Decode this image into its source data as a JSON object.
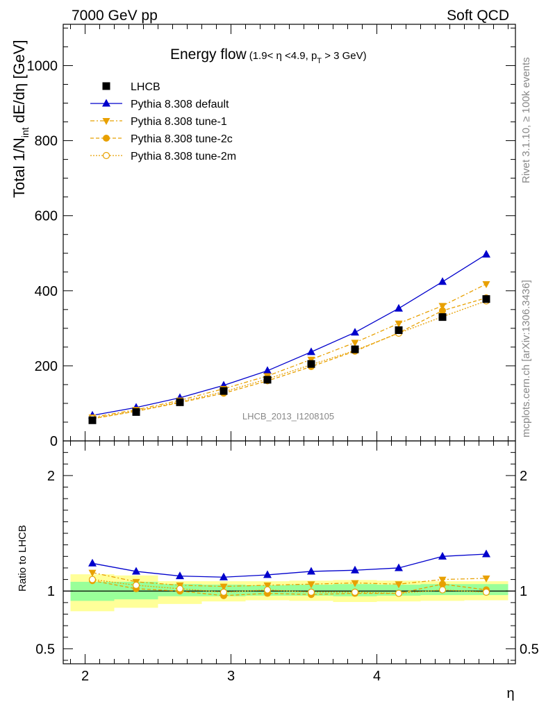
{
  "header": {
    "left": "7000 GeV pp",
    "right": "Soft QCD"
  },
  "title": {
    "main": "Energy flow",
    "sub": "(1.9< η <4.9, p",
    "sub_t": "T",
    "sub_end": " > 3 GeV)"
  },
  "ylabel": {
    "part1": "Total 1/N",
    "sub": "int",
    "part2": " dE/dη [GeV]"
  },
  "ratio_ylabel": "Ratio to LHCB",
  "xlabel": "η",
  "analysis_id": "LHCB_2013_I1208105",
  "side_right_top": "Rivet 3.1.10, ≥ 100k events",
  "side_right_bottom": "mcplots.cern.ch [arXiv:1306.3436]",
  "colors": {
    "lhcb": "#000000",
    "default": "#0000cc",
    "tune": "#e8a000",
    "band_inner": "#99ff99",
    "band_outer": "#ffff99"
  },
  "chart_data": {
    "type": "line",
    "x_bins": [
      [
        1.9,
        2.2
      ],
      [
        2.2,
        2.5
      ],
      [
        2.5,
        2.8
      ],
      [
        2.8,
        3.1
      ],
      [
        3.1,
        3.4
      ],
      [
        3.4,
        3.7
      ],
      [
        3.7,
        4.0
      ],
      [
        4.0,
        4.3
      ],
      [
        4.3,
        4.6
      ],
      [
        4.6,
        4.9
      ]
    ],
    "x": [
      2.05,
      2.35,
      2.65,
      2.95,
      3.25,
      3.55,
      3.85,
      4.15,
      4.45,
      4.75
    ],
    "main": {
      "xlim": [
        1.85,
        4.95
      ],
      "ylim": [
        0,
        1110
      ],
      "yticks": [
        0,
        200,
        400,
        600,
        800,
        1000
      ],
      "legend_position": "top-left",
      "series": [
        {
          "name": "LHCB",
          "values": [
            55,
            77,
            103,
            133,
            163,
            205,
            244,
            295,
            330,
            378
          ]
        },
        {
          "name": "Pythia 8.308 default",
          "values": [
            68,
            89,
            115,
            148,
            187,
            237,
            289,
            353,
            424,
            497
          ]
        },
        {
          "name": "Pythia 8.308 tune-1",
          "values": [
            63,
            83,
            108,
            139,
            173,
            217,
            262,
            313,
            360,
            418
          ]
        },
        {
          "name": "Pythia 8.308 tune-2c",
          "values": [
            59,
            79,
            102,
            127,
            160,
            198,
            239,
            288,
            347,
            381
          ]
        },
        {
          "name": "Pythia 8.308 tune-2m",
          "values": [
            60,
            80,
            104,
            131,
            165,
            203,
            241,
            287,
            331,
            373
          ]
        }
      ]
    },
    "ratio": {
      "ylim": [
        0.37,
        2.3
      ],
      "yticks": [
        0.5,
        1,
        2
      ],
      "stat_band": [
        [
          0.915,
          1.08
        ],
        [
          0.928,
          1.08
        ],
        [
          0.955,
          1.06
        ],
        [
          0.955,
          1.055
        ],
        [
          0.96,
          1.05
        ],
        [
          0.96,
          1.055
        ],
        [
          0.955,
          1.06
        ],
        [
          0.96,
          1.055
        ],
        [
          0.965,
          1.06
        ],
        [
          0.965,
          1.06
        ]
      ],
      "total_band": [
        [
          0.825,
          1.145
        ],
        [
          0.855,
          1.135
        ],
        [
          0.888,
          1.085
        ],
        [
          0.91,
          1.085
        ],
        [
          0.92,
          1.085
        ],
        [
          0.915,
          1.09
        ],
        [
          0.905,
          1.095
        ],
        [
          0.91,
          1.09
        ],
        [
          0.915,
          1.085
        ],
        [
          0.92,
          1.085
        ]
      ],
      "series": [
        {
          "name": "Pythia 8.308 default",
          "values": [
            1.24,
            1.17,
            1.13,
            1.12,
            1.14,
            1.17,
            1.18,
            1.2,
            1.3,
            1.32
          ]
        },
        {
          "name": "Pythia 8.308 tune-1",
          "values": [
            1.16,
            1.08,
            1.05,
            1.04,
            1.05,
            1.06,
            1.07,
            1.06,
            1.1,
            1.11
          ]
        },
        {
          "name": "Pythia 8.308 tune-2c",
          "values": [
            1.09,
            1.02,
            1.0,
            0.96,
            0.98,
            0.97,
            0.98,
            0.98,
            1.06,
            1.01
          ]
        },
        {
          "name": "Pythia 8.308 tune-2m",
          "values": [
            1.1,
            1.05,
            1.02,
            0.99,
            1.01,
            0.99,
            0.99,
            0.98,
            1.01,
            0.99
          ]
        }
      ]
    }
  }
}
